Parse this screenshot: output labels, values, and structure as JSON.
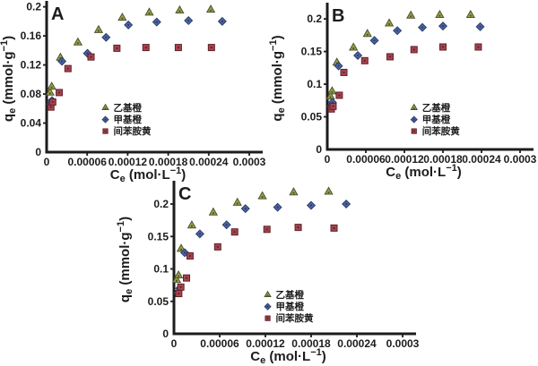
{
  "figure": {
    "background": "#ffffff",
    "axis_color": "#1c1c1c",
    "text_color": "#1c1c1c"
  },
  "chart_data": [
    {
      "type": "scatter",
      "panel_label": "A",
      "xlabel_parts": [
        {
          "t": "C"
        },
        {
          "t": "e",
          "sub": true
        },
        {
          "t": " (mol·L"
        },
        {
          "t": "−1",
          "sup": true
        },
        {
          "t": ")"
        }
      ],
      "ylabel_parts": [
        {
          "t": "q"
        },
        {
          "t": "e",
          "sub": true
        },
        {
          "t": " (mmol·g"
        },
        {
          "t": "−1",
          "sup": true
        },
        {
          "t": ")"
        }
      ],
      "xlim": [
        0,
        0.0003
      ],
      "ylim": [
        0,
        0.202
      ],
      "xticks": [
        0,
        6e-05,
        0.00012,
        0.00018,
        0.00024,
        0.0003
      ],
      "xtick_labels": [
        "0",
        "0.00006",
        "0.00012",
        "0.00018",
        "0.00024",
        "0.0003"
      ],
      "yticks": [
        0,
        0.04,
        0.08,
        0.12,
        0.16,
        0.2
      ],
      "ytick_labels": [
        "0",
        "0.04",
        "0.08",
        "0.12",
        "0.16",
        "0.2"
      ],
      "grid": false,
      "legend_position": "lower-center-inside",
      "legend_frac": [
        0.29,
        0.72
      ],
      "series": [
        {
          "key": "ethyl-orange",
          "name": "乙基橙",
          "marker": "triangle",
          "fill": "#9aa344",
          "stroke": "#4e512e",
          "x": [
            5e-06,
            7.5e-06,
            2.04e-05,
            4.63e-05,
            7.69e-05,
            0.000112,
            0.000152,
            0.000197,
            0.000243
          ],
          "y": [
            0.082,
            0.09,
            0.13,
            0.151,
            0.168,
            0.185,
            0.192,
            0.195,
            0.196
          ]
        },
        {
          "key": "methyl-orange",
          "name": "甲基橙",
          "marker": "diamond",
          "fill": "#4c66a6",
          "stroke": "#2a3a66",
          "x": [
            5.7e-06,
            8e-06,
            2.27e-05,
            6.04e-05,
            8.8e-05,
            0.000121,
            0.000163,
            0.00021,
            0.00026
          ],
          "y": [
            0.066,
            0.071,
            0.125,
            0.136,
            0.158,
            0.175,
            0.179,
            0.181,
            0.18
          ]
        },
        {
          "key": "metanil-yellow",
          "name": "间苯胺黄",
          "marker": "square",
          "fill": "#a4454e",
          "stroke": "#611f29",
          "x": [
            6.3e-06,
            9e-06,
            1.87e-05,
            3.16e-05,
            6.57e-05,
            0.000104,
            0.000147,
            0.000195,
            0.000244
          ],
          "y": [
            0.062,
            0.069,
            0.082,
            0.115,
            0.131,
            0.143,
            0.144,
            0.144,
            0.144
          ]
        }
      ]
    },
    {
      "type": "scatter",
      "panel_label": "B",
      "xlabel_parts": [
        {
          "t": "C"
        },
        {
          "t": "e",
          "sub": true
        },
        {
          "t": " (mol·L"
        },
        {
          "t": "−1",
          "sup": true
        },
        {
          "t": ")"
        }
      ],
      "ylabel_parts": [
        {
          "t": "q"
        },
        {
          "t": "e",
          "sub": true
        },
        {
          "t": " (mmol·g"
        },
        {
          "t": "−1",
          "sup": true
        },
        {
          "t": ")"
        }
      ],
      "xlim": [
        0,
        0.0003
      ],
      "ylim": [
        0,
        0.218
      ],
      "xticks": [
        0,
        6e-05,
        0.00012,
        0.00018,
        0.00024,
        0.0003
      ],
      "xtick_labels": [
        "0",
        "0.00006",
        "0.00012",
        "0.00018",
        "0.00024",
        "0.0003"
      ],
      "yticks": [
        0,
        0.05,
        0.1,
        0.15,
        0.2
      ],
      "ytick_labels": [
        "0",
        "0.05",
        "0.1",
        "0.15",
        "0.2"
      ],
      "grid": false,
      "legend_position": "lower-center-inside",
      "legend_frac": [
        0.45,
        0.73
      ],
      "series": [
        {
          "key": "ethyl-orange",
          "name": "乙基橙",
          "marker": "triangle",
          "fill": "#9aa344",
          "stroke": "#4e512e",
          "x": [
            5e-06,
            7.5e-06,
            1.5e-05,
            4.07e-05,
            6.24e-05,
            9.64e-05,
            0.00013,
            0.000175,
            0.000223
          ],
          "y": [
            0.081,
            0.089,
            0.133,
            0.156,
            0.177,
            0.193,
            0.205,
            0.206,
            0.206
          ]
        },
        {
          "key": "methyl-orange",
          "name": "甲基橙",
          "marker": "diamond",
          "fill": "#4c66a6",
          "stroke": "#2a3a66",
          "x": [
            5.7e-06,
            8e-06,
            1.75e-05,
            4.75e-05,
            7.33e-05,
            0.000109,
            0.000148,
            0.00018,
            0.000238
          ],
          "y": [
            0.066,
            0.072,
            0.128,
            0.144,
            0.167,
            0.182,
            0.187,
            0.189,
            0.188
          ]
        },
        {
          "key": "metanil-yellow",
          "name": "间苯胺黄",
          "marker": "square",
          "fill": "#a4454e",
          "stroke": "#611f29",
          "x": [
            6.3e-06,
            9e-06,
            1.87e-05,
            2.58e-05,
            5.83e-05,
            9.77e-05,
            0.000135,
            0.00018,
            0.000235
          ],
          "y": [
            0.062,
            0.066,
            0.083,
            0.118,
            0.136,
            0.142,
            0.153,
            0.157,
            0.157
          ]
        }
      ]
    },
    {
      "type": "scatter",
      "panel_label": "C",
      "xlabel_parts": [
        {
          "t": "C"
        },
        {
          "t": "e",
          "sub": true
        },
        {
          "t": " (mol·L"
        },
        {
          "t": "−1",
          "sup": true
        },
        {
          "t": ")"
        }
      ],
      "ylabel_parts": [
        {
          "t": "q"
        },
        {
          "t": "e",
          "sub": true
        },
        {
          "t": " (mmol·g"
        },
        {
          "t": "−1",
          "sup": true
        },
        {
          "t": ")"
        }
      ],
      "xlim": [
        0,
        0.0003
      ],
      "ylim": [
        0,
        0.229
      ],
      "xticks": [
        0,
        6e-05,
        0.00012,
        0.00018,
        0.00024,
        0.0003
      ],
      "xtick_labels": [
        "0",
        "0.00006",
        "0.00012",
        "0.00018",
        "0.00024",
        "0.0003"
      ],
      "yticks": [
        0,
        0.05,
        0.1,
        0.15,
        0.2
      ],
      "ytick_labels": [
        "0",
        "0.05",
        "0.1",
        "0.15",
        "0.2"
      ],
      "grid": false,
      "legend_position": "lower-center-inside",
      "legend_frac": [
        0.41,
        0.76
      ],
      "series": [
        {
          "key": "ethyl-orange",
          "name": "乙基橙",
          "marker": "triangle",
          "fill": "#9aa344",
          "stroke": "#4e512e",
          "x": [
            3.5e-06,
            6e-06,
            9.4e-06,
            2.34e-05,
            5.16e-05,
            8.32e-05,
            0.000116,
            0.000157,
            0.000203
          ],
          "y": [
            0.083,
            0.09,
            0.131,
            0.167,
            0.187,
            0.202,
            0.212,
            0.218,
            0.219
          ]
        },
        {
          "key": "methyl-orange",
          "name": "甲基橙",
          "marker": "diamond",
          "fill": "#4c66a6",
          "stroke": "#2a3a66",
          "x": [
            5e-06,
            7.5e-06,
            1.41e-05,
            3.4e-05,
            6.9e-05,
            9.38e-05,
            0.000136,
            0.00018,
            0.000226
          ],
          "y": [
            0.063,
            0.07,
            0.125,
            0.154,
            0.168,
            0.193,
            0.195,
            0.198,
            0.2
          ]
        },
        {
          "key": "metanil-yellow",
          "name": "间苯胺黄",
          "marker": "square",
          "fill": "#a4454e",
          "stroke": "#611f29",
          "x": [
            6.3e-06,
            9e-06,
            1.65e-05,
            2.11e-05,
            5.74e-05,
            7.97e-05,
            0.000122,
            0.000163,
            0.00021
          ],
          "y": [
            0.062,
            0.072,
            0.086,
            0.12,
            0.134,
            0.157,
            0.161,
            0.164,
            0.163
          ]
        }
      ]
    }
  ]
}
